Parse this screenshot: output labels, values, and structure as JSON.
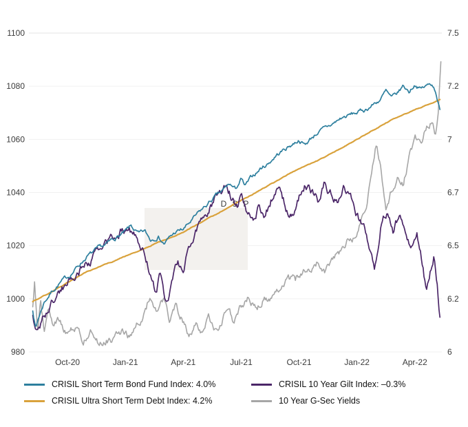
{
  "chart_data": {
    "type": "line",
    "title": "",
    "xlabel": "",
    "ylabel_left": "",
    "ylabel_right": "",
    "watermark": {
      "text": "DSP"
    },
    "grid": "horizontal-faint",
    "legend_position": "bottom",
    "x_unit": "months since Aug-2020",
    "x_domain": [
      0,
      21.4
    ],
    "x_ticks": [
      {
        "x": 2,
        "label": "Oct-20"
      },
      {
        "x": 5,
        "label": "Jan-21"
      },
      {
        "x": 8,
        "label": "Apr-21"
      },
      {
        "x": 11,
        "label": "Jul-21"
      },
      {
        "x": 14,
        "label": "Oct-21"
      },
      {
        "x": 17,
        "label": "Jan-22"
      },
      {
        "x": 20,
        "label": "Apr-22"
      }
    ],
    "left_axis": {
      "min": 980,
      "max": 1100,
      "ticks": [
        1100,
        1080,
        1060,
        1040,
        1020,
        1000,
        980
      ]
    },
    "right_axis": {
      "min": 6,
      "max": 7.5,
      "ticks": [
        {
          "v": 7.5,
          "label": "7.5"
        },
        {
          "v": 7.25,
          "label": "7.2"
        },
        {
          "v": 7,
          "label": "7"
        },
        {
          "v": 6.75,
          "label": "6.7"
        },
        {
          "v": 6.5,
          "label": "6.5"
        },
        {
          "v": 6.25,
          "label": "6.2"
        },
        {
          "v": 6,
          "label": "6"
        }
      ]
    },
    "series": [
      {
        "name": "CRISIL Short Term Bond Fund Index: 4.0%",
        "axis": "left",
        "color": "#2d7f9e",
        "width": 1.7,
        "noise": 1.2,
        "points": [
          [
            0.2,
            996
          ],
          [
            0.35,
            989
          ],
          [
            0.5,
            993
          ],
          [
            0.8,
            999
          ],
          [
            1.2,
            1003
          ],
          [
            1.6,
            1006
          ],
          [
            2,
            1008
          ],
          [
            2.5,
            1012
          ],
          [
            3,
            1016
          ],
          [
            3.5,
            1018
          ],
          [
            4,
            1020
          ],
          [
            4.5,
            1023
          ],
          [
            5,
            1025
          ],
          [
            5.3,
            1027
          ],
          [
            5.7,
            1024
          ],
          [
            6,
            1025
          ],
          [
            6.3,
            1022
          ],
          [
            6.7,
            1024
          ],
          [
            7,
            1021
          ],
          [
            7.3,
            1023
          ],
          [
            7.6,
            1025
          ],
          [
            8,
            1026
          ],
          [
            8.4,
            1029
          ],
          [
            8.8,
            1032
          ],
          [
            9.2,
            1035
          ],
          [
            9.6,
            1038
          ],
          [
            10,
            1040
          ],
          [
            10.4,
            1043
          ],
          [
            10.7,
            1041
          ],
          [
            11,
            1045
          ],
          [
            11.2,
            1042
          ],
          [
            11.6,
            1046
          ],
          [
            12,
            1049
          ],
          [
            12.4,
            1051
          ],
          [
            12.8,
            1054
          ],
          [
            13.2,
            1056
          ],
          [
            13.6,
            1058
          ],
          [
            14,
            1060
          ],
          [
            14.3,
            1058
          ],
          [
            14.7,
            1061
          ],
          [
            15,
            1063
          ],
          [
            15.4,
            1064
          ],
          [
            15.8,
            1066
          ],
          [
            16.2,
            1068
          ],
          [
            16.6,
            1069
          ],
          [
            17,
            1070
          ],
          [
            17.4,
            1071
          ],
          [
            17.8,
            1073
          ],
          [
            18.2,
            1075
          ],
          [
            18.5,
            1078
          ],
          [
            18.8,
            1075
          ],
          [
            19.1,
            1077
          ],
          [
            19.4,
            1080
          ],
          [
            19.7,
            1078
          ],
          [
            20,
            1081
          ],
          [
            20.3,
            1079
          ],
          [
            20.6,
            1080
          ],
          [
            20.9,
            1081
          ],
          [
            21.1,
            1078
          ],
          [
            21.3,
            1071
          ]
        ]
      },
      {
        "name": "CRISIL 10 Year Gilt Index: –0.3%",
        "axis": "left",
        "color": "#4b2668",
        "width": 1.7,
        "noise": 2.6,
        "points": [
          [
            0.2,
            994
          ],
          [
            0.35,
            987
          ],
          [
            0.55,
            990
          ],
          [
            0.8,
            994
          ],
          [
            1.1,
            997
          ],
          [
            1.5,
            1002
          ],
          [
            2,
            1006
          ],
          [
            2.5,
            1010
          ],
          [
            3,
            1014
          ],
          [
            3.5,
            1017
          ],
          [
            4,
            1020
          ],
          [
            4.4,
            1023
          ],
          [
            4.8,
            1026
          ],
          [
            5.2,
            1028
          ],
          [
            5.6,
            1022
          ],
          [
            6,
            1016
          ],
          [
            6.3,
            1010
          ],
          [
            6.6,
            1002
          ],
          [
            6.8,
            1009
          ],
          [
            7.1,
            998
          ],
          [
            7.4,
            1005
          ],
          [
            7.7,
            1013
          ],
          [
            8,
            1011
          ],
          [
            8.3,
            1019
          ],
          [
            8.6,
            1025
          ],
          [
            9,
            1030
          ],
          [
            9.4,
            1035
          ],
          [
            9.8,
            1040
          ],
          [
            10.2,
            1044
          ],
          [
            10.5,
            1039
          ],
          [
            10.8,
            1035
          ],
          [
            11,
            1042
          ],
          [
            11.3,
            1035
          ],
          [
            11.6,
            1030
          ],
          [
            11.9,
            1035
          ],
          [
            12.2,
            1030
          ],
          [
            12.6,
            1038
          ],
          [
            13,
            1042
          ],
          [
            13.3,
            1035
          ],
          [
            13.7,
            1031
          ],
          [
            14,
            1038
          ],
          [
            14.3,
            1044
          ],
          [
            14.6,
            1041
          ],
          [
            15,
            1037
          ],
          [
            15.3,
            1043
          ],
          [
            15.7,
            1039
          ],
          [
            16,
            1038
          ],
          [
            16.3,
            1042
          ],
          [
            16.7,
            1036
          ],
          [
            17,
            1032
          ],
          [
            17.3,
            1027
          ],
          [
            17.6,
            1021
          ],
          [
            17.9,
            1011
          ],
          [
            18.1,
            1022
          ],
          [
            18.3,
            1031
          ],
          [
            18.6,
            1034
          ],
          [
            18.9,
            1024
          ],
          [
            19.2,
            1031
          ],
          [
            19.5,
            1027
          ],
          [
            19.8,
            1021
          ],
          [
            20.1,
            1025
          ],
          [
            20.4,
            1014
          ],
          [
            20.6,
            1004
          ],
          [
            20.8,
            1012
          ],
          [
            21,
            1018
          ],
          [
            21.15,
            1008
          ],
          [
            21.3,
            994
          ]
        ]
      },
      {
        "name": "CRISIL Ultra Short Term Debt Index: 4.2%",
        "axis": "left",
        "color": "#d9a23c",
        "width": 2.2,
        "noise": 0.2,
        "points": [
          [
            0.2,
            999
          ],
          [
            1,
            1002
          ],
          [
            2,
            1006
          ],
          [
            3,
            1010
          ],
          [
            4,
            1013
          ],
          [
            5,
            1016
          ],
          [
            6,
            1019
          ],
          [
            7,
            1022
          ],
          [
            8,
            1025
          ],
          [
            9,
            1029
          ],
          [
            10,
            1033
          ],
          [
            11,
            1037
          ],
          [
            12,
            1041
          ],
          [
            13,
            1045
          ],
          [
            14,
            1049
          ],
          [
            15,
            1052
          ],
          [
            16,
            1056
          ],
          [
            17,
            1060
          ],
          [
            18,
            1064
          ],
          [
            19,
            1068
          ],
          [
            20,
            1071
          ],
          [
            21.3,
            1075
          ]
        ]
      },
      {
        "name": "10 Year G-Sec Yields",
        "axis": "right",
        "color": "#a6a6a6",
        "width": 1.6,
        "noise": 0.03,
        "points": [
          [
            0.2,
            6.2
          ],
          [
            0.3,
            6.34
          ],
          [
            0.45,
            6.08
          ],
          [
            0.6,
            6.26
          ],
          [
            0.8,
            6.1
          ],
          [
            1,
            6.2
          ],
          [
            1.3,
            6.12
          ],
          [
            1.6,
            6.16
          ],
          [
            2,
            6.08
          ],
          [
            2.4,
            6.12
          ],
          [
            2.8,
            6.05
          ],
          [
            3.2,
            6.1
          ],
          [
            3.6,
            6.05
          ],
          [
            4,
            6.08
          ],
          [
            4.4,
            6.05
          ],
          [
            4.8,
            6.1
          ],
          [
            5.2,
            6.07
          ],
          [
            5.6,
            6.12
          ],
          [
            6,
            6.2
          ],
          [
            6.3,
            6.27
          ],
          [
            6.6,
            6.19
          ],
          [
            7,
            6.24
          ],
          [
            7.3,
            6.14
          ],
          [
            7.6,
            6.21
          ],
          [
            8,
            6.15
          ],
          [
            8.3,
            6.07
          ],
          [
            8.7,
            6.13
          ],
          [
            9,
            6.07
          ],
          [
            9.3,
            6.14
          ],
          [
            9.7,
            6.09
          ],
          [
            10,
            6.13
          ],
          [
            10.3,
            6.2
          ],
          [
            10.6,
            6.15
          ],
          [
            11,
            6.22
          ],
          [
            11.4,
            6.26
          ],
          [
            11.8,
            6.22
          ],
          [
            12.2,
            6.27
          ],
          [
            12.6,
            6.24
          ],
          [
            13,
            6.3
          ],
          [
            13.4,
            6.36
          ],
          [
            13.8,
            6.33
          ],
          [
            14.2,
            6.39
          ],
          [
            14.6,
            6.36
          ],
          [
            15,
            6.41
          ],
          [
            15.4,
            6.38
          ],
          [
            15.8,
            6.45
          ],
          [
            16.2,
            6.48
          ],
          [
            16.6,
            6.54
          ],
          [
            17,
            6.56
          ],
          [
            17.4,
            6.65
          ],
          [
            17.8,
            6.85
          ],
          [
            18,
            6.97
          ],
          [
            18.2,
            6.88
          ],
          [
            18.5,
            6.7
          ],
          [
            18.8,
            6.78
          ],
          [
            19.1,
            6.85
          ],
          [
            19.4,
            6.8
          ],
          [
            19.7,
            6.92
          ],
          [
            20,
            7.0
          ],
          [
            20.3,
            6.95
          ],
          [
            20.6,
            7.05
          ],
          [
            20.9,
            7.1
          ],
          [
            21.05,
            7.04
          ],
          [
            21.2,
            7.15
          ],
          [
            21.35,
            7.41
          ]
        ]
      }
    ]
  },
  "legend": {
    "items": [
      {
        "series": 0,
        "label": "CRISIL Short Term Bond Fund Index: 4.0%"
      },
      {
        "series": 1,
        "label": "CRISIL 10 Year Gilt Index: –0.3%"
      },
      {
        "series": 2,
        "label": "CRISIL Ultra Short Term Debt Index: 4.2%"
      },
      {
        "series": 3,
        "label": "10 Year G-Sec Yields"
      }
    ]
  }
}
